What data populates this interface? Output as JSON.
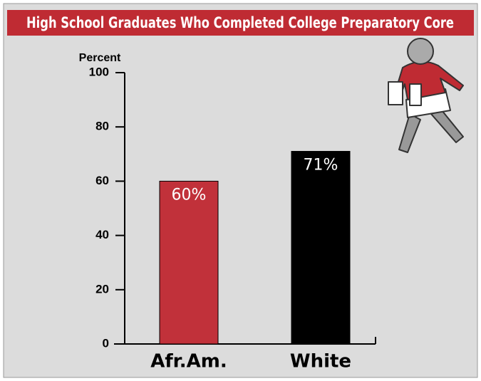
{
  "chart_data": {
    "type": "bar",
    "title": "High School Graduates Who Completed College Preparatory Core",
    "y_label": "Percent",
    "categories": [
      "Afr.Am.",
      "White"
    ],
    "values": [
      60,
      71
    ],
    "value_labels": [
      "60%",
      "71%"
    ],
    "colors": [
      "#c1313a",
      "#000000"
    ],
    "ylim": [
      0,
      100
    ],
    "yticks": [
      0,
      20,
      40,
      60,
      80,
      100
    ]
  }
}
